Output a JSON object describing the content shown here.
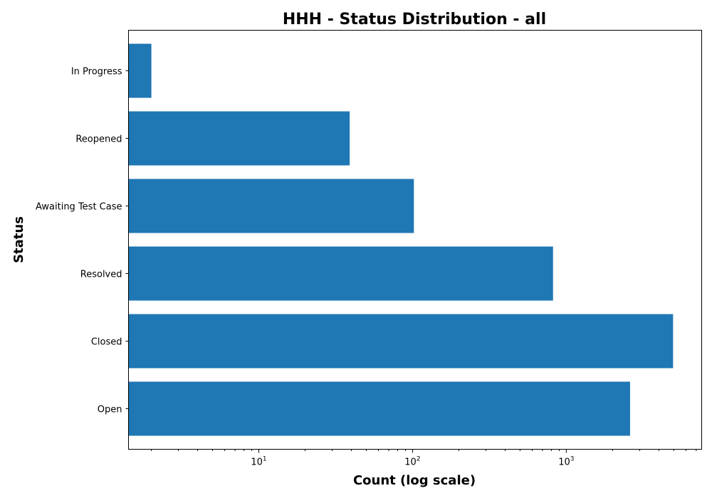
{
  "chart_data": {
    "type": "bar",
    "orientation": "horizontal",
    "title": "HHH - Status Distribution - all",
    "xlabel": "Count (log scale)",
    "ylabel": "Status",
    "xscale": "log",
    "xlim": [
      1.42,
      7600
    ],
    "categories": [
      "Open",
      "Closed",
      "Resolved",
      "Awaiting Test Case",
      "Reopened",
      "In Progress"
    ],
    "values": [
      2600,
      4950,
      820,
      102,
      39,
      2
    ],
    "x_ticks": [
      {
        "value": 10,
        "base": "10",
        "exp": "1"
      },
      {
        "value": 100,
        "base": "10",
        "exp": "2"
      },
      {
        "value": 1000,
        "base": "10",
        "exp": "3"
      }
    ],
    "bar_color": "#1f77b4",
    "grid": false,
    "legend": "none"
  }
}
